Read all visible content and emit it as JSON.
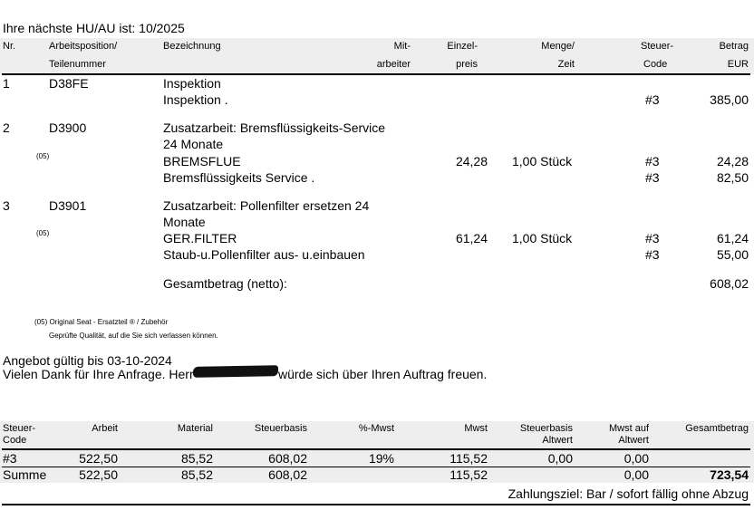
{
  "hu_au": "Ihre nächste HU/AU ist: 10/2025",
  "columns": {
    "nr": "Nr.",
    "pos1": "Arbeitsposition/",
    "pos2": "Teilenummer",
    "bez": "Bezeichnung",
    "mit1": "Mit-",
    "mit2": "arbeiter",
    "ein1": "Einzel-",
    "ein2": "preis",
    "menge1": "Menge/",
    "menge2": "Zeit",
    "steuer1": "Steuer-",
    "steuer2": "Code",
    "betrag1": "Betrag",
    "betrag2": "EUR"
  },
  "positions": [
    {
      "nr": "1",
      "code": "D38FE",
      "title": "Inspektion",
      "lines": [
        {
          "desc": "Inspektion .",
          "tax": "#3",
          "amount": "385,00"
        }
      ]
    },
    {
      "nr": "2",
      "code": "D3900",
      "title": "Zusatzarbeit: Bremsflüssigkeits-Service",
      "title2": "24 Monate",
      "marker": "(05)",
      "lines": [
        {
          "desc": "BREMSFLUE",
          "unit_price": "24,28",
          "qty": "1,00 Stück",
          "tax": "#3",
          "amount": "24,28"
        },
        {
          "desc": "Bremsflüssigkeits Service .",
          "tax": "#3",
          "amount": "82,50"
        }
      ]
    },
    {
      "nr": "3",
      "code": "D3901",
      "title": "Zusatzarbeit: Pollenfilter ersetzen  24",
      "title2": "Monate",
      "marker": "(05)",
      "lines": [
        {
          "desc": "GER.FILTER",
          "unit_price": "61,24",
          "qty": "1,00 Stück",
          "tax": "#3",
          "amount": "61,24"
        },
        {
          "desc": "Staub-u.Pollenfilter aus- u.einbauen",
          "tax": "#3",
          "amount": "55,00"
        }
      ]
    }
  ],
  "total_net_label": "Gesamtbetrag (netto):",
  "total_net": "608,02",
  "footnote1": "(05) Original Seat - Ersatzteil ® / Zubehör",
  "footnote2": "Geprüfte Qualität, auf die Sie sich verlassen können.",
  "valid": "Angebot gültig bis 03-10-2024",
  "thanks_pre": "Vielen Dank für Ihre Anfrage. Herr",
  "thanks_post": "würde sich über Ihren Auftrag freuen.",
  "summary": {
    "headers": {
      "code1": "Steuer-",
      "code2": "Code",
      "arbeit": "Arbeit",
      "material": "Material",
      "basis": "Steuerbasis",
      "pct": "%-Mwst",
      "mwst": "Mwst",
      "alt1": "Steuerbasis",
      "alt2": "Altwert",
      "mwstalt1": "Mwst auf",
      "mwstalt2": "Altwert",
      "gesamt": "Gesamtbetrag"
    },
    "row": {
      "code": "#3",
      "arbeit": "522,50",
      "material": "85,52",
      "basis": "608,02",
      "pct": "19%",
      "mwst": "115,52",
      "alt": "0,00",
      "mwstalt": "0,00"
    },
    "sum": {
      "label": "Summe",
      "arbeit": "522,50",
      "material": "85,52",
      "basis": "608,02",
      "mwst": "115,52",
      "mwstalt": "0,00",
      "gesamt": "723,54"
    }
  },
  "payment": "Zahlungsziel: Bar / sofort fällig ohne Abzug"
}
